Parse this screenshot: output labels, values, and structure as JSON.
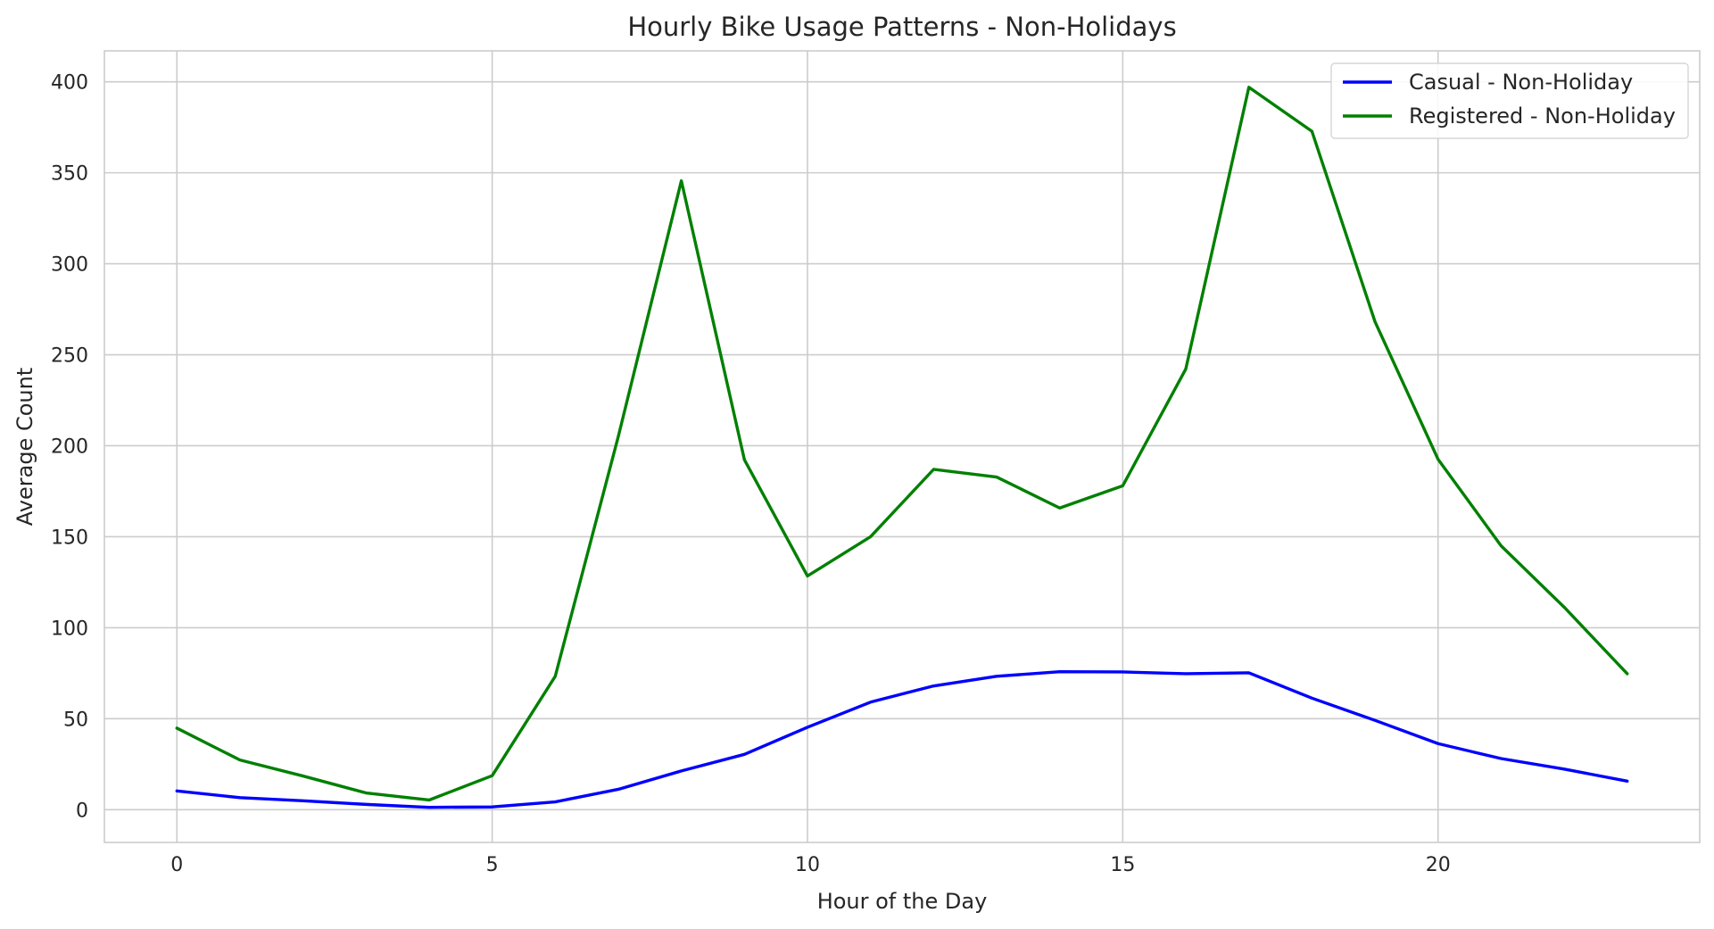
{
  "chart_data": {
    "type": "line",
    "title": "Hourly Bike Usage Patterns - Non-Holidays",
    "xlabel": "Hour of the Day",
    "ylabel": "Average Count",
    "x": [
      0,
      1,
      2,
      3,
      4,
      5,
      6,
      7,
      8,
      9,
      10,
      11,
      12,
      13,
      14,
      15,
      16,
      17,
      18,
      19,
      20,
      21,
      22,
      23
    ],
    "xlim": [
      -1.15,
      24.15
    ],
    "ylim": [
      -18,
      417
    ],
    "xticks": [
      0,
      5,
      10,
      15,
      20
    ],
    "yticks": [
      0,
      50,
      100,
      150,
      200,
      250,
      300,
      350,
      400
    ],
    "grid": true,
    "legend_position": "top-right",
    "series": [
      {
        "name": "Casual - Non-Holiday",
        "color": "#0000ff",
        "values": [
          10.3,
          6.6,
          4.9,
          2.9,
          1.3,
          1.5,
          4.3,
          11.2,
          21.3,
          30.4,
          45.3,
          59.1,
          68.0,
          73.3,
          75.8,
          75.7,
          74.7,
          75.2,
          61.3,
          49.1,
          36.3,
          28.1,
          22.3,
          15.7
        ]
      },
      {
        "name": "Registered - Non-Holiday",
        "color": "#008000",
        "values": [
          44.8,
          27.3,
          18.5,
          9.2,
          5.3,
          18.7,
          73.3,
          205.1,
          345.6,
          192.3,
          128.4,
          150.0,
          187.0,
          182.8,
          165.8,
          178.0,
          242.2,
          397.0,
          372.8,
          268.2,
          192.6,
          145.0,
          111.3,
          74.7
        ]
      }
    ]
  }
}
